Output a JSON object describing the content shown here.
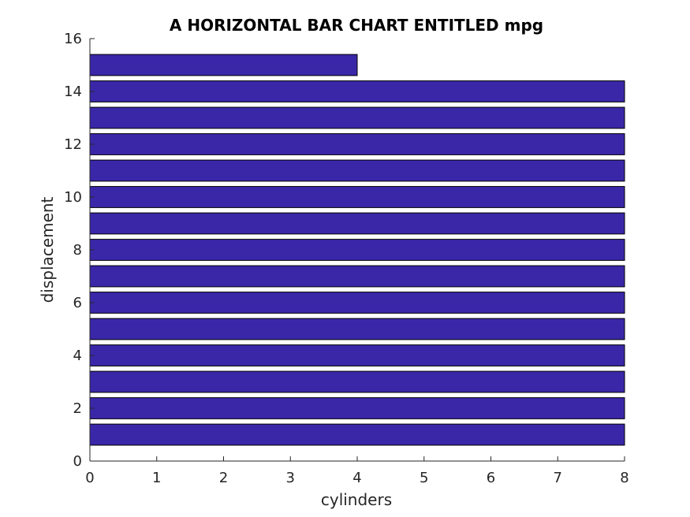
{
  "chart_data": {
    "type": "bar",
    "orientation": "horizontal",
    "title": "A HORIZONTAL BAR CHART ENTITLED mpg",
    "xlabel": "cylinders",
    "ylabel": "displacement",
    "categories": [
      1,
      2,
      3,
      4,
      5,
      6,
      7,
      8,
      9,
      10,
      11,
      12,
      13,
      14,
      15
    ],
    "values": [
      8,
      8,
      8,
      8,
      8,
      8,
      8,
      8,
      8,
      8,
      8,
      8,
      8,
      8,
      4
    ],
    "xlim": [
      0,
      8
    ],
    "ylim": [
      0,
      16
    ],
    "xticks": [
      "0",
      "1",
      "2",
      "3",
      "4",
      "5",
      "6",
      "7",
      "8"
    ],
    "yticks": [
      "0",
      "2",
      "4",
      "6",
      "8",
      "10",
      "12",
      "14",
      "16"
    ],
    "grid": false,
    "bar_color": "#3a27a8",
    "edge_color": "#000000"
  }
}
